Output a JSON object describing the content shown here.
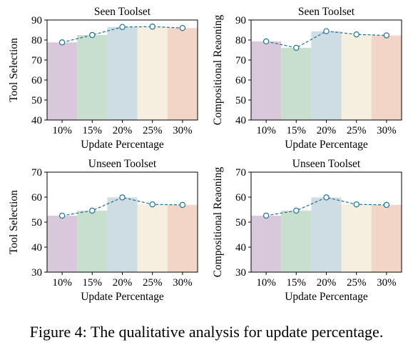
{
  "caption": "Figure 4: The qualitative analysis for update percentage.",
  "colors": {
    "bars": [
      "#d9c8dc",
      "#c9dfcd",
      "#cddde3",
      "#f6eedf",
      "#f2d5c6"
    ],
    "line": "#1f6f93",
    "marker_fill": "#ffffff"
  },
  "chart_data": [
    {
      "type": "bar",
      "title": "Seen Toolset",
      "xlabel": "Update Percentage",
      "ylabel": "Tool Selection",
      "categories": [
        "10%",
        "15%",
        "20%",
        "25%",
        "30%"
      ],
      "values": [
        78.8,
        82.5,
        86.5,
        86.7,
        86.0
      ],
      "ylim": [
        40,
        90
      ],
      "yticks": [
        40,
        50,
        60,
        70,
        80,
        90
      ],
      "overlay_line": true
    },
    {
      "type": "bar",
      "title": "Seen Toolset",
      "xlabel": "Update Percentage",
      "ylabel": "Compositional Reaoning",
      "categories": [
        "10%",
        "15%",
        "20%",
        "25%",
        "30%"
      ],
      "values": [
        79.3,
        76.1,
        84.4,
        82.8,
        82.3
      ],
      "ylim": [
        40,
        90
      ],
      "yticks": [
        40,
        50,
        60,
        70,
        80,
        90
      ],
      "overlay_line": true
    },
    {
      "type": "bar",
      "title": "Unseen Toolset",
      "xlabel": "Update Percentage",
      "ylabel": "Tool Selection",
      "categories": [
        "10%",
        "15%",
        "20%",
        "25%",
        "30%"
      ],
      "values": [
        52.6,
        54.6,
        59.9,
        57.1,
        56.9
      ],
      "ylim": [
        30,
        70
      ],
      "yticks": [
        30,
        40,
        50,
        60,
        70
      ],
      "overlay_line": true
    },
    {
      "type": "bar",
      "title": "Unseen Toolset",
      "xlabel": "Update Percentage",
      "ylabel": "Compositional Reaoning",
      "categories": [
        "10%",
        "15%",
        "20%",
        "25%",
        "30%"
      ],
      "values": [
        52.6,
        54.6,
        59.9,
        57.1,
        56.9
      ],
      "ylim": [
        30,
        70
      ],
      "yticks": [
        30,
        40,
        50,
        60,
        70
      ],
      "overlay_line": true
    }
  ]
}
